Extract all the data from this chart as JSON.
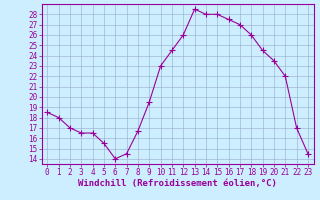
{
  "x": [
    0,
    1,
    2,
    3,
    4,
    5,
    6,
    7,
    8,
    9,
    10,
    11,
    12,
    13,
    14,
    15,
    16,
    17,
    18,
    19,
    20,
    21,
    22,
    23
  ],
  "y": [
    18.5,
    18.0,
    17.0,
    16.5,
    16.5,
    15.5,
    14.0,
    14.5,
    16.7,
    19.5,
    23.0,
    24.5,
    26.0,
    28.5,
    28.0,
    28.0,
    27.5,
    27.0,
    26.0,
    24.5,
    23.5,
    22.0,
    17.0,
    14.5
  ],
  "line_color": "#990099",
  "marker": "+",
  "marker_size": 4,
  "bg_color": "#cceeff",
  "grid_color": "#99aacc",
  "xlabel": "Windchill (Refroidissement éolien,°C)",
  "xlabel_color": "#990099",
  "ylim_min": 13.5,
  "ylim_max": 29.0,
  "xlim_min": -0.5,
  "xlim_max": 23.5,
  "yticks": [
    14,
    15,
    16,
    17,
    18,
    19,
    20,
    21,
    22,
    23,
    24,
    25,
    26,
    27,
    28
  ],
  "xticks": [
    0,
    1,
    2,
    3,
    4,
    5,
    6,
    7,
    8,
    9,
    10,
    11,
    12,
    13,
    14,
    15,
    16,
    17,
    18,
    19,
    20,
    21,
    22,
    23
  ],
  "tick_color": "#990099",
  "tick_label_fontsize": 5.5,
  "xlabel_fontsize": 6.5,
  "spine_color": "#990099",
  "line_width": 0.8,
  "markeredgewidth": 0.8
}
